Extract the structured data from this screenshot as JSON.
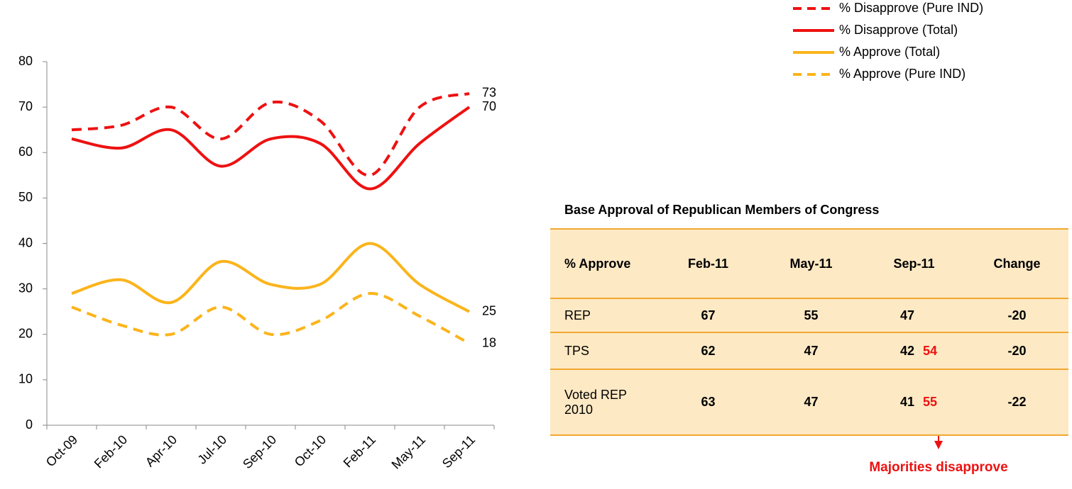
{
  "chart_data": {
    "type": "line",
    "categories": [
      "Oct-09",
      "Feb-10",
      "Apr-10",
      "Jul-10",
      "Sep-10",
      "Oct-10",
      "Feb-11",
      "May-11",
      "Sep-11"
    ],
    "series": [
      {
        "name": "% Disapprove (Pure IND)",
        "color": "#ee1111",
        "style": "dashed",
        "values": [
          65,
          66,
          70,
          63,
          71,
          67,
          55,
          70,
          73
        ]
      },
      {
        "name": "% Disapprove (Total)",
        "color": "#ee1111",
        "style": "solid",
        "values": [
          63,
          61,
          65,
          57,
          63,
          62,
          52,
          62,
          70
        ]
      },
      {
        "name": "% Approve (Total)",
        "color": "#fbb41b",
        "style": "solid",
        "values": [
          29,
          32,
          27,
          36,
          31,
          31,
          40,
          31,
          25
        ]
      },
      {
        "name": "% Approve (Pure IND)",
        "color": "#fbb41b",
        "style": "dashed",
        "values": [
          26,
          22,
          20,
          26,
          20,
          23,
          29,
          24,
          18
        ]
      }
    ],
    "ylim": [
      0,
      80
    ],
    "yticks": [
      0,
      10,
      20,
      30,
      40,
      50,
      60,
      70,
      80
    ],
    "grid": false
  },
  "table": {
    "title": "Base Approval of Republican Members of Congress",
    "header": [
      "% Approve",
      "Feb-11",
      "May-11",
      "Sep-11",
      "Change"
    ],
    "rows": [
      {
        "cells": [
          "REP",
          67,
          55,
          47,
          -20
        ]
      },
      {
        "cells": [
          "TPS",
          62,
          47,
          42,
          -20
        ],
        "disapprove": 54
      },
      {
        "cells": [
          "Voted REP 2010",
          63,
          47,
          41,
          -22
        ],
        "disapprove": 55
      }
    ],
    "note": "Majorities disapprove"
  }
}
